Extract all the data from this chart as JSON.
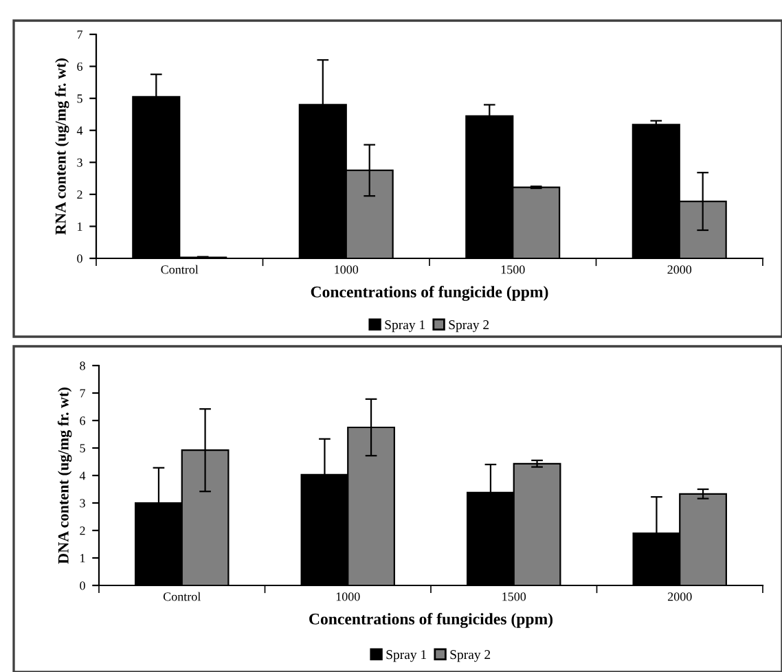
{
  "chart_data": [
    {
      "type": "bar",
      "categories": [
        "Control",
        "1000",
        "1500",
        "2000"
      ],
      "xlabel": "Concentrations of fungicide (ppm)",
      "ylabel": "RNA content (ug/mg fr. wt)",
      "ylim": [
        0,
        7
      ],
      "yticks": [
        0,
        1,
        2,
        3,
        4,
        5,
        6,
        7
      ],
      "grid": false,
      "legend": "bottom",
      "series": [
        {
          "name": "Spray 1",
          "color": "#000000",
          "values": [
            5.05,
            4.8,
            4.45,
            4.18
          ],
          "errors": [
            0.7,
            1.4,
            0.35,
            0.12
          ]
        },
        {
          "name": "Spray 2",
          "color": "#808080",
          "values": [
            0.03,
            2.75,
            2.22,
            1.78
          ],
          "errors": [
            0.02,
            0.8,
            0.03,
            0.9
          ]
        }
      ]
    },
    {
      "type": "bar",
      "categories": [
        "Control",
        "1000",
        "1500",
        "2000"
      ],
      "xlabel": "Concentrations of fungicides (ppm)",
      "ylabel": "DNA content (ug/mg fr. wt)",
      "ylim": [
        0,
        8
      ],
      "yticks": [
        0,
        1,
        2,
        3,
        4,
        5,
        6,
        7,
        8
      ],
      "grid": false,
      "legend": "bottom",
      "series": [
        {
          "name": "Spray 1",
          "color": "#000000",
          "values": [
            3.0,
            4.03,
            3.38,
            1.9
          ],
          "errors": [
            1.28,
            1.3,
            1.02,
            1.32
          ]
        },
        {
          "name": "Spray 2",
          "color": "#808080",
          "values": [
            4.92,
            5.75,
            4.43,
            3.33
          ],
          "errors": [
            1.5,
            1.03,
            0.12,
            0.17
          ]
        }
      ]
    }
  ]
}
